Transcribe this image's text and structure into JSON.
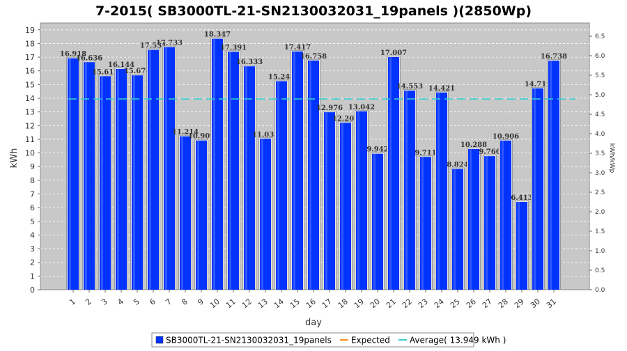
{
  "chart_data": {
    "type": "bar",
    "title": "7-2015( SB3000TL-21-SN2130032031_19panels )(2850Wp)",
    "xlabel": "day",
    "ylabel": "kWh",
    "y2label": "kWh/kWp",
    "ylim": [
      0,
      19.5
    ],
    "y2lim": [
      0,
      6.84
    ],
    "yticks": [
      "0",
      "1",
      "2",
      "3",
      "4",
      "5",
      "6",
      "7",
      "8",
      "9",
      "10",
      "11",
      "12",
      "13",
      "14",
      "15",
      "16",
      "17",
      "18",
      "19"
    ],
    "y2ticks": [
      "0.0",
      "0.5",
      "1.0",
      "1.5",
      "2.0",
      "2.5",
      "3.0",
      "3.5",
      "4.0",
      "4.5",
      "5.0",
      "5.5",
      "6.0",
      "6.5"
    ],
    "categories": [
      "1",
      "2",
      "3",
      "4",
      "5",
      "6",
      "7",
      "8",
      "9",
      "10",
      "11",
      "12",
      "13",
      "14",
      "15",
      "16",
      "17",
      "18",
      "19",
      "20",
      "21",
      "22",
      "23",
      "24",
      "25",
      "26",
      "27",
      "28",
      "29",
      "30",
      "31"
    ],
    "series": [
      {
        "name": "SB3000TL-21-SN2130032031_19panels",
        "color": "#0033ff",
        "values": [
          16.918,
          16.636,
          15.611,
          16.144,
          15.67,
          17.531,
          17.733,
          11.214,
          10.909,
          18.347,
          17.391,
          16.333,
          11.035,
          15.248,
          17.417,
          16.758,
          12.976,
          12.205,
          13.042,
          9.942,
          17.007,
          14.553,
          9.711,
          14.421,
          8.824,
          10.288,
          9.766,
          10.906,
          6.413,
          14.719,
          16.738
        ],
        "labels": [
          "16.918",
          "16.636",
          "15.611",
          "16.144",
          "15.670",
          "17.531",
          "17.733",
          "11.214",
          "10.909",
          "18.347",
          "17.391",
          "16.333",
          "11.035",
          "15.248",
          "17.417",
          "16.758",
          "12.976",
          "12.205",
          "13.042",
          "9.942",
          "17.007",
          "14.553",
          "9.711",
          "14.421",
          "8.824",
          "10.288",
          "9.766",
          "10.906",
          "6.413",
          "14.719",
          "16.738"
        ]
      }
    ],
    "average": {
      "value": 13.949,
      "color": "#33cccc"
    },
    "legend": {
      "placement": "bottom",
      "items": [
        {
          "label": "SB3000TL-21-SN2130032031_19panels",
          "color": "#0033ff",
          "kind": "box"
        },
        {
          "label": "Expected",
          "color": "#ff8c1a",
          "kind": "line"
        },
        {
          "label": "Average( 13.949 kWh )",
          "color": "#33cccc",
          "kind": "line"
        }
      ]
    },
    "grid": true,
    "plot_background": "#c8c8c8"
  }
}
